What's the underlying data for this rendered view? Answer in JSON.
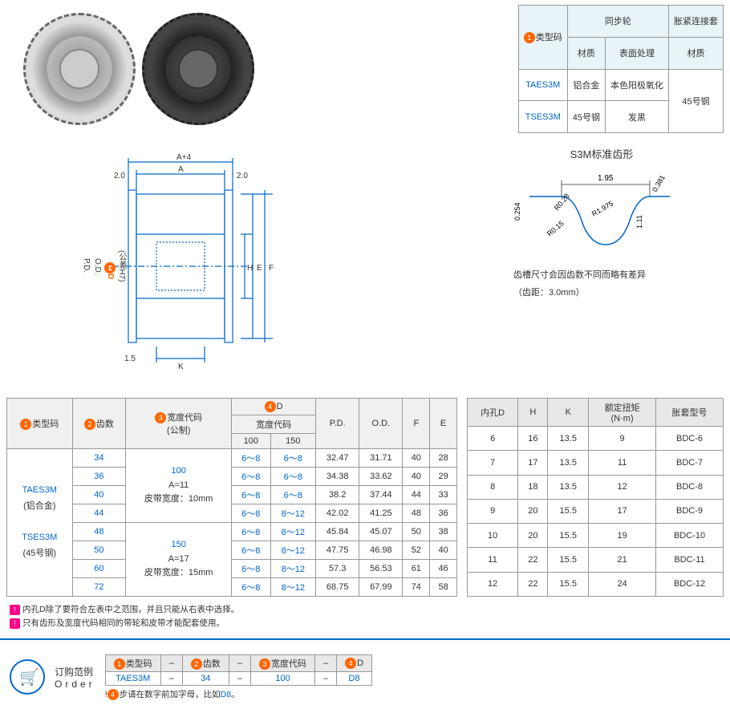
{
  "typeTable": {
    "headers": {
      "typeCode": "类型码",
      "syncWheel": "同步轮",
      "material": "材质",
      "surface": "表面处理",
      "bushing": "胀紧连接套",
      "bushMat": "材质"
    },
    "rows": [
      {
        "code": "TAES3M",
        "mat": "铝合金",
        "surf": "本色阳极氧化"
      },
      {
        "code": "TSES3M",
        "mat": "45号钢",
        "surf": "发黑"
      }
    ],
    "bushVal": "45号钢"
  },
  "toothProfile": {
    "title": "S3M标准齿形",
    "dims": {
      "pitch": "1.95",
      "d1": "0.381",
      "d2": "0.254",
      "r1": "R0.28",
      "r2": "R1.975",
      "r3": "R0.15",
      "h": "1.11"
    },
    "note1": "齿槽尺寸会因齿数不同而略有差异",
    "note2": "（齿距：3.0mm）"
  },
  "drawing": {
    "labels": {
      "a4": "A+4",
      "a": "A",
      "w": "2.0",
      "k": "K",
      "pd": "P.D.",
      "od": "O.D.",
      "d": "D",
      "tol": "(公差H7)",
      "h": "H",
      "e": "E",
      "f": "F",
      "t": "1.5"
    }
  },
  "specTable": {
    "headers": {
      "type": "类型码",
      "teeth": "齿数",
      "width": "宽度代码\n(公制)",
      "d": "D",
      "dcode": "宽度代码",
      "pd": "P.D.",
      "od": "O.D.",
      "f": "F",
      "e": "E"
    },
    "widthSub": [
      "100",
      "150"
    ],
    "typeCodes": [
      {
        "code": "TAES3M",
        "mat": "(铝合金)"
      },
      {
        "code": "TSES3M",
        "mat": "(45号钢)"
      }
    ],
    "widthInfo": [
      {
        "code": "100",
        "a": "A=11",
        "belt": "皮带宽度：10mm"
      },
      {
        "code": "150",
        "a": "A=17",
        "belt": "皮带宽度：15mm"
      }
    ],
    "rows": [
      {
        "teeth": "34",
        "d100": "6～8",
        "d150": "6～8",
        "pd": "32.47",
        "od": "31.71",
        "f": "40",
        "e": "28"
      },
      {
        "teeth": "36",
        "d100": "6～8",
        "d150": "6～8",
        "pd": "34.38",
        "od": "33.62",
        "f": "40",
        "e": "29"
      },
      {
        "teeth": "40",
        "d100": "6～8",
        "d150": "6～8",
        "pd": "38.2",
        "od": "37.44",
        "f": "44",
        "e": "33"
      },
      {
        "teeth": "44",
        "d100": "6～8",
        "d150": "8～12",
        "pd": "42.02",
        "od": "41.25",
        "f": "48",
        "e": "36"
      },
      {
        "teeth": "48",
        "d100": "6～8",
        "d150": "8～12",
        "pd": "45.84",
        "od": "45.07",
        "f": "50",
        "e": "38"
      },
      {
        "teeth": "50",
        "d100": "6～8",
        "d150": "8～12",
        "pd": "47.75",
        "od": "46.98",
        "f": "52",
        "e": "40"
      },
      {
        "teeth": "60",
        "d100": "6～8",
        "d150": "8～12",
        "pd": "57.3",
        "od": "56.53",
        "f": "61",
        "e": "46"
      },
      {
        "teeth": "72",
        "d100": "6～8",
        "d150": "8～12",
        "pd": "68.75",
        "od": "67.99",
        "f": "74",
        "e": "58"
      }
    ]
  },
  "paramTable": {
    "headers": {
      "d": "内孔D",
      "h": "H",
      "k": "K",
      "torque": "额定扭矩\n(N·m)",
      "model": "胀套型号"
    },
    "rows": [
      {
        "d": "6",
        "h": "16",
        "k": "13.5",
        "t": "9",
        "m": "BDC-6"
      },
      {
        "d": "7",
        "h": "17",
        "k": "13.5",
        "t": "11",
        "m": "BDC-7"
      },
      {
        "d": "8",
        "h": "18",
        "k": "13.5",
        "t": "12",
        "m": "BDC-8"
      },
      {
        "d": "9",
        "h": "20",
        "k": "15.5",
        "t": "17",
        "m": "BDC-9"
      },
      {
        "d": "10",
        "h": "20",
        "k": "15.5",
        "t": "19",
        "m": "BDC-10"
      },
      {
        "d": "11",
        "h": "22",
        "k": "15.5",
        "t": "21",
        "m": "BDC-11"
      },
      {
        "d": "12",
        "h": "22",
        "k": "15.5",
        "t": "24",
        "m": "BDC-12"
      }
    ]
  },
  "notes": {
    "n1": "内孔D除了要符合左表中之范围，并且只能从右表中选择。",
    "n2": "只有齿形及宽度代码相同的带轮和皮带才能配套使用。"
  },
  "order": {
    "title": "订购范例",
    "sub": "Order",
    "headers": {
      "type": "类型码",
      "teeth": "齿数",
      "width": "宽度代码",
      "d": "D"
    },
    "vals": {
      "type": "TAES3M",
      "teeth": "34",
      "width": "100",
      "d": "D8"
    },
    "sep": "–",
    "note": "步请在数字前加字母，比如",
    "noteEx": "D8",
    "noteEnd": "。"
  },
  "colors": {
    "orange": "#ff6600",
    "blue": "#0066cc",
    "headerBg": "#e8f4f8"
  }
}
